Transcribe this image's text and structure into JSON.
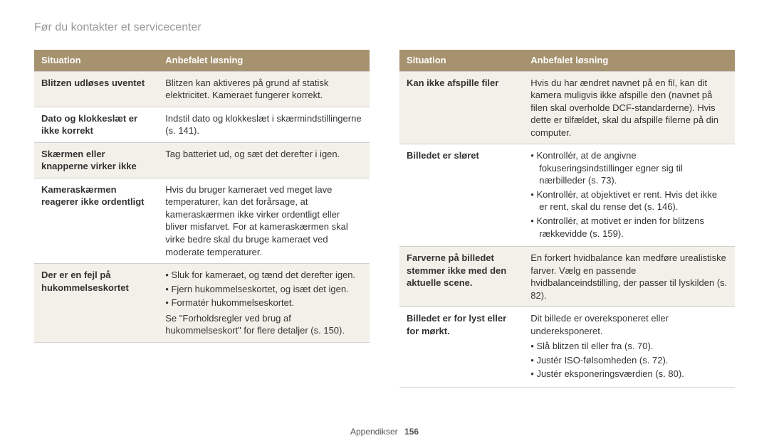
{
  "page_title": "Før du kontakter et servicecenter",
  "footer_label": "Appendikser",
  "footer_page": "156",
  "headers": {
    "situation": "Situation",
    "solution": "Anbefalet løsning"
  },
  "left": [
    {
      "situation": "Blitzen udløses uventet",
      "solution_text": "Blitzen kan aktiveres på grund af statisk elektricitet. Kameraet fungerer korrekt."
    },
    {
      "situation": "Dato og klokkeslæt er ikke korrekt",
      "solution_text": "Indstil dato og klokkeslæt i skærmindstillingerne (s. 141)."
    },
    {
      "situation": "Skærmen eller knapperne virker ikke",
      "solution_text": "Tag batteriet ud, og sæt det derefter i igen."
    },
    {
      "situation": "Kameraskærmen reagerer ikke ordentligt",
      "solution_text": "Hvis du bruger kameraet ved meget lave temperaturer, kan det forårsage, at kameraskærmen ikke virker ordentligt eller bliver misfarvet. For at kameraskærmen skal virke bedre skal du bruge kameraet ved moderate temperaturer."
    },
    {
      "situation": "Der er en fejl på hukommelseskortet",
      "solution_bullets": [
        "Sluk for kameraet, og tænd det derefter igen.",
        "Fjern hukommelseskortet, og isæt det igen.",
        "Formatér hukommelseskortet."
      ],
      "solution_after": "Se \"Forholdsregler ved brug af hukommelseskort\" for flere detaljer (s. 150)."
    }
  ],
  "right": [
    {
      "situation": "Kan ikke afspille filer",
      "solution_text": "Hvis du har ændret navnet på en fil, kan dit kamera muligvis ikke afspille den (navnet på filen skal overholde DCF-standarderne). Hvis dette er tilfældet, skal du afspille filerne på din computer."
    },
    {
      "situation": "Billedet er sløret",
      "solution_bullets": [
        "Kontrollér, at de angivne fokuseringsindstillinger egner sig til nærbilleder (s. 73).",
        "Kontrollér, at objektivet er rent. Hvis det ikke er rent, skal du rense det (s. 146).",
        "Kontrollér, at motivet er inden for blitzens rækkevidde (s. 159)."
      ]
    },
    {
      "situation": "Farverne på billedet stemmer ikke med den aktuelle scene.",
      "solution_text": "En forkert hvidbalance kan medføre urealistiske farver. Vælg en passende hvidbalanceindstilling, der passer til lyskilden (s. 82)."
    },
    {
      "situation": "Billedet er for lyst eller for mørkt.",
      "solution_intro": "Dit billede er overeksponeret eller undereksponeret.",
      "solution_bullets": [
        "Slå blitzen til eller fra (s. 70).",
        "Justér ISO-følsomheden (s. 72).",
        "Justér eksponeringsværdien (s. 80)."
      ]
    }
  ]
}
